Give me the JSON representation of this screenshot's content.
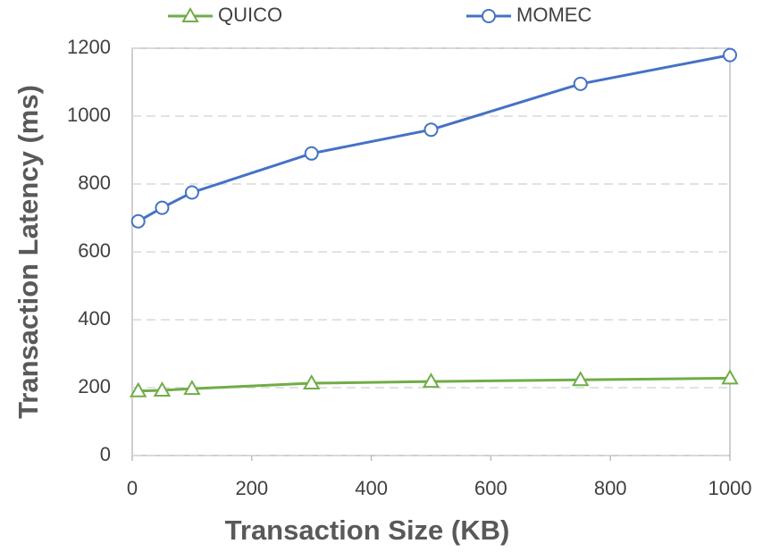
{
  "chart_data": {
    "type": "line",
    "x_label": "Transaction  Size (KB)",
    "y_label": "Transaction  Latency (ms)",
    "x": [
      10,
      50,
      100,
      300,
      500,
      750,
      1000
    ],
    "series": [
      {
        "name": "QUICO",
        "color": "#70ad47",
        "marker": "triangle",
        "values": [
          190,
          192,
          197,
          213,
          218,
          223,
          228
        ]
      },
      {
        "name": "MOMEC",
        "color": "#4472c4",
        "marker": "circle",
        "values": [
          690,
          730,
          775,
          890,
          960,
          1095,
          1180
        ]
      }
    ],
    "xlim": [
      0,
      1000
    ],
    "xticks": [
      0,
      200,
      400,
      600,
      800,
      1000
    ],
    "ylim": [
      0,
      1200
    ],
    "yticks": [
      0,
      200,
      400,
      600,
      800,
      1000,
      1200
    ],
    "grid": true,
    "legend": "top"
  }
}
